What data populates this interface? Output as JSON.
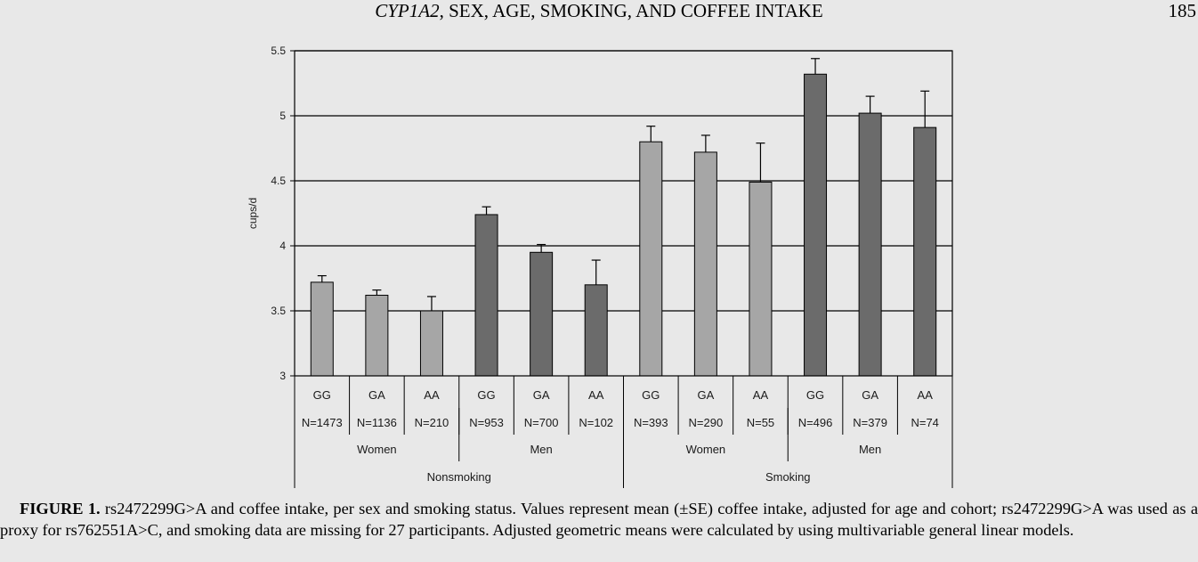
{
  "header": {
    "title_italic": "CYP1A2",
    "title_rest": ", SEX, AGE, SMOKING, AND COFFEE INTAKE",
    "page_number": "185"
  },
  "chart_data": {
    "type": "bar",
    "ylabel": "cups/d",
    "ylim": [
      3,
      5.5
    ],
    "yticks": [
      "3",
      "3.5",
      "4",
      "4.5",
      "5",
      "5.5"
    ],
    "grid": "horizontal",
    "bars": [
      {
        "genotype": "GG",
        "n": "N=1473",
        "value": 3.72,
        "se": 0.05,
        "sex": "Women",
        "smoking": "Nonsmoking",
        "color": "#a6a6a6"
      },
      {
        "genotype": "GA",
        "n": "N=1136",
        "value": 3.62,
        "se": 0.04,
        "sex": "Women",
        "smoking": "Nonsmoking",
        "color": "#a6a6a6"
      },
      {
        "genotype": "AA",
        "n": "N=210",
        "value": 3.5,
        "se": 0.11,
        "sex": "Women",
        "smoking": "Nonsmoking",
        "color": "#a6a6a6"
      },
      {
        "genotype": "GG",
        "n": "N=953",
        "value": 4.24,
        "se": 0.06,
        "sex": "Men",
        "smoking": "Nonsmoking",
        "color": "#6b6b6b"
      },
      {
        "genotype": "GA",
        "n": "N=700",
        "value": 3.95,
        "se": 0.06,
        "sex": "Men",
        "smoking": "Nonsmoking",
        "color": "#6b6b6b"
      },
      {
        "genotype": "AA",
        "n": "N=102",
        "value": 3.7,
        "se": 0.19,
        "sex": "Men",
        "smoking": "Nonsmoking",
        "color": "#6b6b6b"
      },
      {
        "genotype": "GG",
        "n": "N=393",
        "value": 4.8,
        "se": 0.12,
        "sex": "Women",
        "smoking": "Smoking",
        "color": "#a6a6a6"
      },
      {
        "genotype": "GA",
        "n": "N=290",
        "value": 4.72,
        "se": 0.13,
        "sex": "Women",
        "smoking": "Smoking",
        "color": "#a6a6a6"
      },
      {
        "genotype": "AA",
        "n": "N=55",
        "value": 4.49,
        "se": 0.3,
        "sex": "Women",
        "smoking": "Smoking",
        "color": "#a6a6a6"
      },
      {
        "genotype": "GG",
        "n": "N=496",
        "value": 5.32,
        "se": 0.12,
        "sex": "Men",
        "smoking": "Smoking",
        "color": "#6b6b6b"
      },
      {
        "genotype": "GA",
        "n": "N=379",
        "value": 5.02,
        "se": 0.13,
        "sex": "Men",
        "smoking": "Smoking",
        "color": "#6b6b6b"
      },
      {
        "genotype": "AA",
        "n": "N=74",
        "value": 4.91,
        "se": 0.28,
        "sex": "Men",
        "smoking": "Smoking",
        "color": "#6b6b6b"
      }
    ],
    "sex_groups": [
      "Women",
      "Men",
      "Women",
      "Men"
    ],
    "smoking_groups": [
      "Nonsmoking",
      "Smoking"
    ]
  },
  "caption": {
    "label": "FIGURE 1.",
    "text": " rs2472299G>A and coffee intake, per sex and smoking status. Values represent mean (±SE) coffee intake, adjusted for age and cohort; rs2472299G>A was used as a proxy for rs762551A>C, and smoking data are missing for 27 participants. Adjusted geometric means were calculated by using multivariable general linear models."
  }
}
